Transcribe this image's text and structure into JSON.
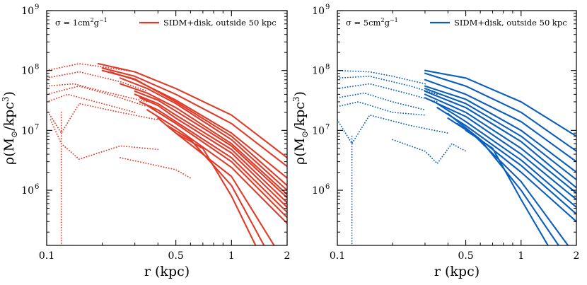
{
  "chart_data": [
    {
      "type": "line",
      "series_color": "#e03a28",
      "annotation": {
        "base": "σ = 1cm",
        "sup1": "2",
        "mid": "g",
        "sup2": "−1"
      },
      "legend": [
        "SIDM+disk, outside 50 kpc"
      ],
      "xlabel": "r (kpc)",
      "ylabel": {
        "main": "ρ(M",
        "sub": "⊙",
        "mid": "/kpc",
        "sup": "3",
        "end": ")"
      },
      "xscale": "log",
      "yscale": "log",
      "xlim": [
        0.1,
        2.0
      ],
      "ylim": [
        120000,
        1000000000
      ],
      "xticks": [
        {
          "value": 0.1,
          "label": "0.1"
        },
        {
          "value": 0.5,
          "label": "0.5"
        },
        {
          "value": 1,
          "label": "1"
        },
        {
          "value": 2,
          "label": "2"
        }
      ],
      "yticks": [
        {
          "value": 1000000,
          "label": "10",
          "exp": "6"
        },
        {
          "value": 10000000,
          "label": "10",
          "exp": "7"
        },
        {
          "value": 100000000,
          "label": "10",
          "exp": "8"
        },
        {
          "value": 1000000000,
          "label": "10",
          "exp": "9"
        }
      ],
      "solid_curves": [
        {
          "x": [
            0.19,
            0.3,
            0.5,
            1,
            2
          ],
          "y": [
            130000000,
            95000000,
            50000000,
            18000000,
            3500000
          ]
        },
        {
          "x": [
            0.2,
            0.3,
            0.5,
            1,
            2
          ],
          "y": [
            110000000,
            80000000,
            40000000,
            13000000,
            2500000
          ]
        },
        {
          "x": [
            0.22,
            0.3,
            0.5,
            1,
            2
          ],
          "y": [
            95000000,
            70000000,
            32000000,
            9000000,
            1600000
          ]
        },
        {
          "x": [
            0.2,
            0.3,
            0.5,
            1,
            2
          ],
          "y": [
            100000000,
            72000000,
            30000000,
            8000000,
            1200000
          ]
        },
        {
          "x": [
            0.25,
            0.35,
            0.5,
            1,
            2
          ],
          "y": [
            75000000,
            50000000,
            28000000,
            7000000,
            1000000
          ]
        },
        {
          "x": [
            0.25,
            0.35,
            0.5,
            1,
            2
          ],
          "y": [
            60000000,
            42000000,
            24000000,
            6000000,
            850000
          ]
        },
        {
          "x": [
            0.3,
            0.4,
            0.5,
            1,
            2
          ],
          "y": [
            45000000,
            32000000,
            21000000,
            5500000,
            750000
          ]
        },
        {
          "x": [
            0.3,
            0.4,
            0.5,
            1,
            2
          ],
          "y": [
            40000000,
            28000000,
            18000000,
            4800000,
            620000
          ]
        },
        {
          "x": [
            0.32,
            0.4,
            0.5,
            1,
            2
          ],
          "y": [
            35000000,
            26000000,
            16000000,
            4200000,
            520000
          ]
        },
        {
          "x": [
            0.32,
            0.4,
            0.5,
            1,
            2
          ],
          "y": [
            30000000,
            22000000,
            14000000,
            3500000,
            430000
          ]
        },
        {
          "x": [
            0.35,
            0.5,
            1,
            2
          ],
          "y": [
            26000000,
            13000000,
            3000000,
            350000
          ]
        },
        {
          "x": [
            0.35,
            0.5,
            1,
            2
          ],
          "y": [
            22000000,
            11000000,
            2400000,
            280000
          ]
        },
        {
          "x": [
            0.4,
            0.5,
            1,
            1.7
          ],
          "y": [
            16000000,
            9000000,
            1700000,
            120000
          ]
        },
        {
          "x": [
            0.45,
            0.6,
            1,
            1.5
          ],
          "y": [
            12000000,
            7000000,
            1200000,
            120000
          ]
        },
        {
          "x": [
            0.5,
            0.7,
            1,
            1.35
          ],
          "y": [
            9000000,
            5000000,
            800000,
            120000
          ]
        }
      ],
      "dotted_curves": [
        {
          "x": [
            0.1,
            0.15,
            0.2,
            0.3
          ],
          "y": [
            100000000,
            130000000,
            115000000,
            95000000
          ]
        },
        {
          "x": [
            0.1,
            0.15,
            0.25,
            0.35
          ],
          "y": [
            75000000,
            95000000,
            65000000,
            45000000
          ]
        },
        {
          "x": [
            0.1,
            0.14,
            0.2,
            0.35
          ],
          "y": [
            55000000,
            60000000,
            45000000,
            30000000
          ]
        },
        {
          "x": [
            0.1,
            0.15,
            0.25,
            0.35
          ],
          "y": [
            40000000,
            55000000,
            35000000,
            25000000
          ]
        },
        {
          "x": [
            0.1,
            0.13,
            0.2,
            0.3
          ],
          "y": [
            30000000,
            40000000,
            28000000,
            20000000
          ]
        },
        {
          "x": [
            0.1,
            0.12,
            0.15,
            0.25,
            0.4
          ],
          "y": [
            22000000,
            9000000,
            28000000,
            20000000,
            15000000
          ]
        },
        {
          "x": [
            0.105,
            0.12,
            0.15,
            0.25,
            0.4
          ],
          "y": [
            15000000,
            6000000,
            3300000,
            5500000,
            4800000
          ]
        },
        {
          "x": [
            0.12,
            0.12
          ],
          "y": [
            20000000,
            120000
          ]
        },
        {
          "x": [
            0.25,
            0.35,
            0.5,
            0.6
          ],
          "y": [
            3500000,
            2800000,
            2200000,
            1600000
          ]
        }
      ]
    },
    {
      "type": "line",
      "series_color": "#0a5ebc",
      "annotation": {
        "base": "σ = 5cm",
        "sup1": "2",
        "mid": "g",
        "sup2": "−1"
      },
      "legend": [
        "SIDM+disk, outside 50 kpc"
      ],
      "xlabel": "r (kpc)",
      "ylabel": {
        "main": "ρ(M",
        "sub": "⊙",
        "mid": "/kpc",
        "sup": "3",
        "end": ")"
      },
      "xscale": "log",
      "yscale": "log",
      "xlim": [
        0.1,
        2.0
      ],
      "ylim": [
        120000,
        1000000000
      ],
      "xticks": [
        {
          "value": 0.1,
          "label": "0.1"
        },
        {
          "value": 0.5,
          "label": "0.5"
        },
        {
          "value": 1,
          "label": "1"
        },
        {
          "value": 2,
          "label": "2"
        }
      ],
      "yticks": [
        {
          "value": 1000000,
          "label": "10",
          "exp": "6"
        },
        {
          "value": 10000000,
          "label": "10",
          "exp": "7"
        },
        {
          "value": 100000000,
          "label": "10",
          "exp": "8"
        },
        {
          "value": 1000000000,
          "label": "10",
          "exp": "9"
        }
      ],
      "solid_curves": [
        {
          "x": [
            0.3,
            0.5,
            1,
            2
          ],
          "y": [
            100000000,
            75000000,
            30000000,
            8000000
          ]
        },
        {
          "x": [
            0.3,
            0.5,
            1,
            2
          ],
          "y": [
            90000000,
            55000000,
            20000000,
            4500000
          ]
        },
        {
          "x": [
            0.3,
            0.5,
            1,
            2
          ],
          "y": [
            70000000,
            40000000,
            14000000,
            3000000
          ]
        },
        {
          "x": [
            0.3,
            0.5,
            1,
            2
          ],
          "y": [
            55000000,
            33000000,
            10000000,
            2000000
          ]
        },
        {
          "x": [
            0.3,
            0.5,
            1,
            2
          ],
          "y": [
            50000000,
            28000000,
            8000000,
            1500000
          ]
        },
        {
          "x": [
            0.3,
            0.5,
            1,
            2
          ],
          "y": [
            45000000,
            24000000,
            6500000,
            1100000
          ]
        },
        {
          "x": [
            0.3,
            0.5,
            1,
            2
          ],
          "y": [
            40000000,
            20000000,
            5000000,
            900000
          ]
        },
        {
          "x": [
            0.3,
            0.5,
            1,
            2
          ],
          "y": [
            35000000,
            17000000,
            4000000,
            700000
          ]
        },
        {
          "x": [
            0.35,
            0.5,
            1,
            2
          ],
          "y": [
            28000000,
            14000000,
            3200000,
            520000
          ]
        },
        {
          "x": [
            0.35,
            0.5,
            1,
            2
          ],
          "y": [
            24000000,
            12000000,
            2600000,
            400000
          ]
        },
        {
          "x": [
            0.4,
            0.5,
            1,
            2
          ],
          "y": [
            19000000,
            11000000,
            2000000,
            300000
          ]
        },
        {
          "x": [
            0.4,
            0.55,
            1,
            1.8
          ],
          "y": [
            16000000,
            8500000,
            1400000,
            120000
          ]
        },
        {
          "x": [
            0.45,
            0.6,
            1,
            1.6
          ],
          "y": [
            13000000,
            7000000,
            1000000,
            120000
          ]
        },
        {
          "x": [
            0.5,
            0.7,
            1,
            1.4
          ],
          "y": [
            10000000,
            5000000,
            700000,
            120000
          ]
        }
      ],
      "dotted_curves": [
        {
          "x": [
            0.1,
            0.15,
            0.2,
            0.3
          ],
          "y": [
            100000000,
            95000000,
            80000000,
            60000000
          ]
        },
        {
          "x": [
            0.1,
            0.15,
            0.25,
            0.35
          ],
          "y": [
            75000000,
            80000000,
            55000000,
            40000000
          ]
        },
        {
          "x": [
            0.1,
            0.15,
            0.25,
            0.35
          ],
          "y": [
            50000000,
            60000000,
            40000000,
            30000000
          ]
        },
        {
          "x": [
            0.1,
            0.14,
            0.2,
            0.3
          ],
          "y": [
            35000000,
            42000000,
            30000000,
            22000000
          ]
        },
        {
          "x": [
            0.1,
            0.13,
            0.2,
            0.3
          ],
          "y": [
            25000000,
            30000000,
            20000000,
            18000000
          ]
        },
        {
          "x": [
            0.1,
            0.12,
            0.15,
            0.25,
            0.4
          ],
          "y": [
            15000000,
            6000000,
            18000000,
            12000000,
            9000000
          ]
        },
        {
          "x": [
            0.2,
            0.3,
            0.35,
            0.42,
            0.5
          ],
          "y": [
            7000000,
            4500000,
            2800000,
            6000000,
            4500000
          ]
        },
        {
          "x": [
            0.12,
            0.12
          ],
          "y": [
            8000000,
            120000
          ]
        }
      ]
    }
  ]
}
